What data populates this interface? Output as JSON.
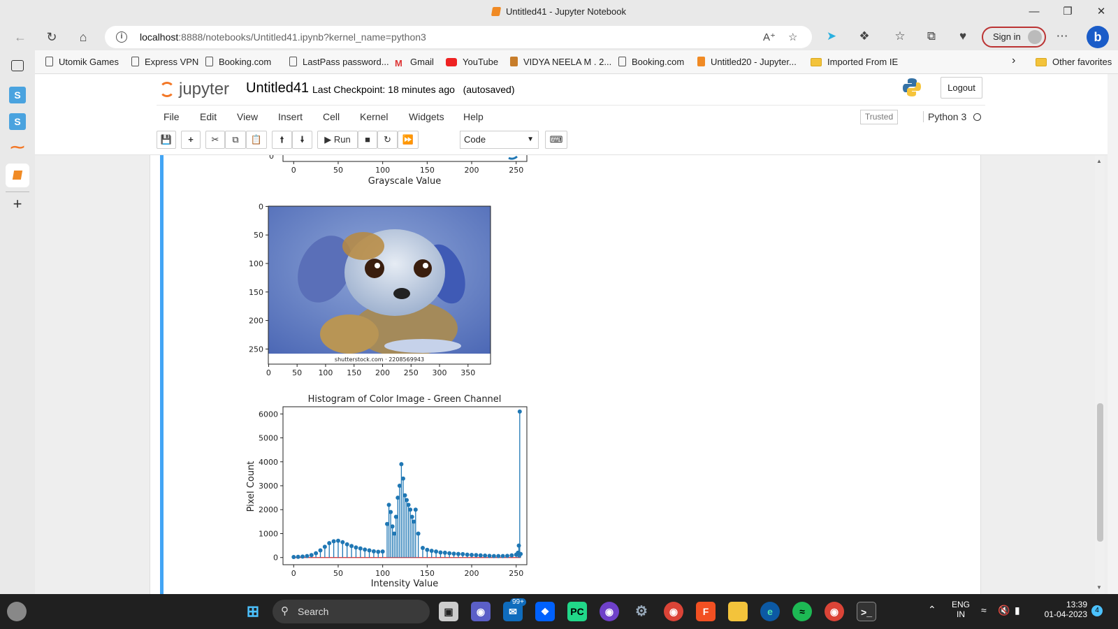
{
  "window": {
    "title": "Untitled41 - Jupyter Notebook"
  },
  "browser": {
    "url_host": "localhost",
    "url_rest": ":8888/notebooks/Untitled41.ipynb?kernel_name=python3",
    "sign_in_label": "Sign in"
  },
  "favorites": [
    {
      "label": "Utomik Games",
      "icon": "page-icon"
    },
    {
      "label": "Express VPN",
      "icon": "page-icon"
    },
    {
      "label": "Booking.com",
      "icon": "page-icon"
    },
    {
      "label": "LastPass password...",
      "icon": "page-icon"
    },
    {
      "label": "Gmail",
      "icon": "gmail-icon"
    },
    {
      "label": "YouTube",
      "icon": "youtube-icon"
    },
    {
      "label": "VIDYA NEELA M . 2...",
      "icon": "site-icon"
    },
    {
      "label": "Booking.com",
      "icon": "page-icon"
    },
    {
      "label": "Untitled20 - Jupyter...",
      "icon": "jupyter-icon"
    },
    {
      "label": "Imported From IE",
      "icon": "folder-icon"
    }
  ],
  "other_favorites": "Other favorites",
  "jupyter": {
    "logo_text": "jupyter",
    "notebook_name": "Untitled41",
    "checkpoint": "Last Checkpoint: 18 minutes ago",
    "autosaved": "(autosaved)",
    "logout_label": "Logout",
    "menu": [
      "File",
      "Edit",
      "View",
      "Insert",
      "Cell",
      "Kernel",
      "Widgets",
      "Help"
    ],
    "trusted_label": "Trusted",
    "kernel_name": "Python 3",
    "run_label": "Run",
    "cell_type": "Code"
  },
  "output": {
    "top_chart_xlabel": "Grayscale Value",
    "image_caption": "shutterstock.com · 2208569943",
    "image_y_ticks": [
      "0",
      "50",
      "100",
      "150",
      "200",
      "250"
    ],
    "image_x_ticks": [
      "0",
      "50",
      "100",
      "150",
      "200",
      "250",
      "300",
      "350"
    ]
  },
  "chart_data": [
    {
      "type": "line",
      "title": "",
      "xlabel": "Grayscale Value",
      "ylabel": "",
      "x_ticks": [
        "0",
        "50",
        "100",
        "150",
        "200",
        "250"
      ],
      "xlim": [
        -12,
        262
      ]
    },
    {
      "type": "scatter",
      "title": "Histogram of Color Image - Green Channel",
      "xlabel": "Intensity Value",
      "ylabel": "Pixel Count",
      "xlim": [
        -12,
        262
      ],
      "ylim": [
        -300,
        6300
      ],
      "x_ticks": [
        0,
        50,
        100,
        150,
        200,
        250
      ],
      "y_ticks": [
        0,
        1000,
        2000,
        3000,
        4000,
        5000,
        6000
      ],
      "color": "#1f77b4",
      "baseline_color": "#d62728",
      "series": [
        {
          "x": [
            0,
            5,
            10,
            15,
            20,
            25,
            30,
            35,
            40,
            45,
            50,
            55,
            60,
            65,
            70,
            75,
            80,
            85,
            90,
            95,
            100,
            105,
            107,
            109,
            111,
            113,
            115,
            117,
            119,
            121,
            123,
            125,
            127,
            129,
            131,
            133,
            135,
            137,
            140,
            145,
            150,
            155,
            160,
            165,
            170,
            175,
            180,
            185,
            190,
            195,
            200,
            205,
            210,
            215,
            220,
            225,
            230,
            235,
            240,
            245,
            250,
            252,
            253,
            254,
            255
          ],
          "y": [
            20,
            30,
            40,
            60,
            100,
            180,
            300,
            450,
            600,
            680,
            700,
            640,
            550,
            480,
            420,
            380,
            330,
            300,
            260,
            240,
            250,
            1400,
            2200,
            1900,
            1300,
            1000,
            1700,
            2500,
            3000,
            3900,
            3300,
            2600,
            2400,
            2200,
            2000,
            1700,
            1500,
            2000,
            1000,
            400,
            320,
            280,
            250,
            210,
            200,
            180,
            160,
            150,
            140,
            120,
            110,
            100,
            90,
            80,
            70,
            60,
            60,
            60,
            70,
            90,
            120,
            200,
            500,
            6100,
            150
          ]
        }
      ]
    }
  ],
  "taskbar": {
    "search_label": "Search",
    "badge": "99+",
    "lang1": "ENG",
    "lang2": "IN",
    "time": "13:39",
    "date": "01-04-2023",
    "notif": "4"
  }
}
